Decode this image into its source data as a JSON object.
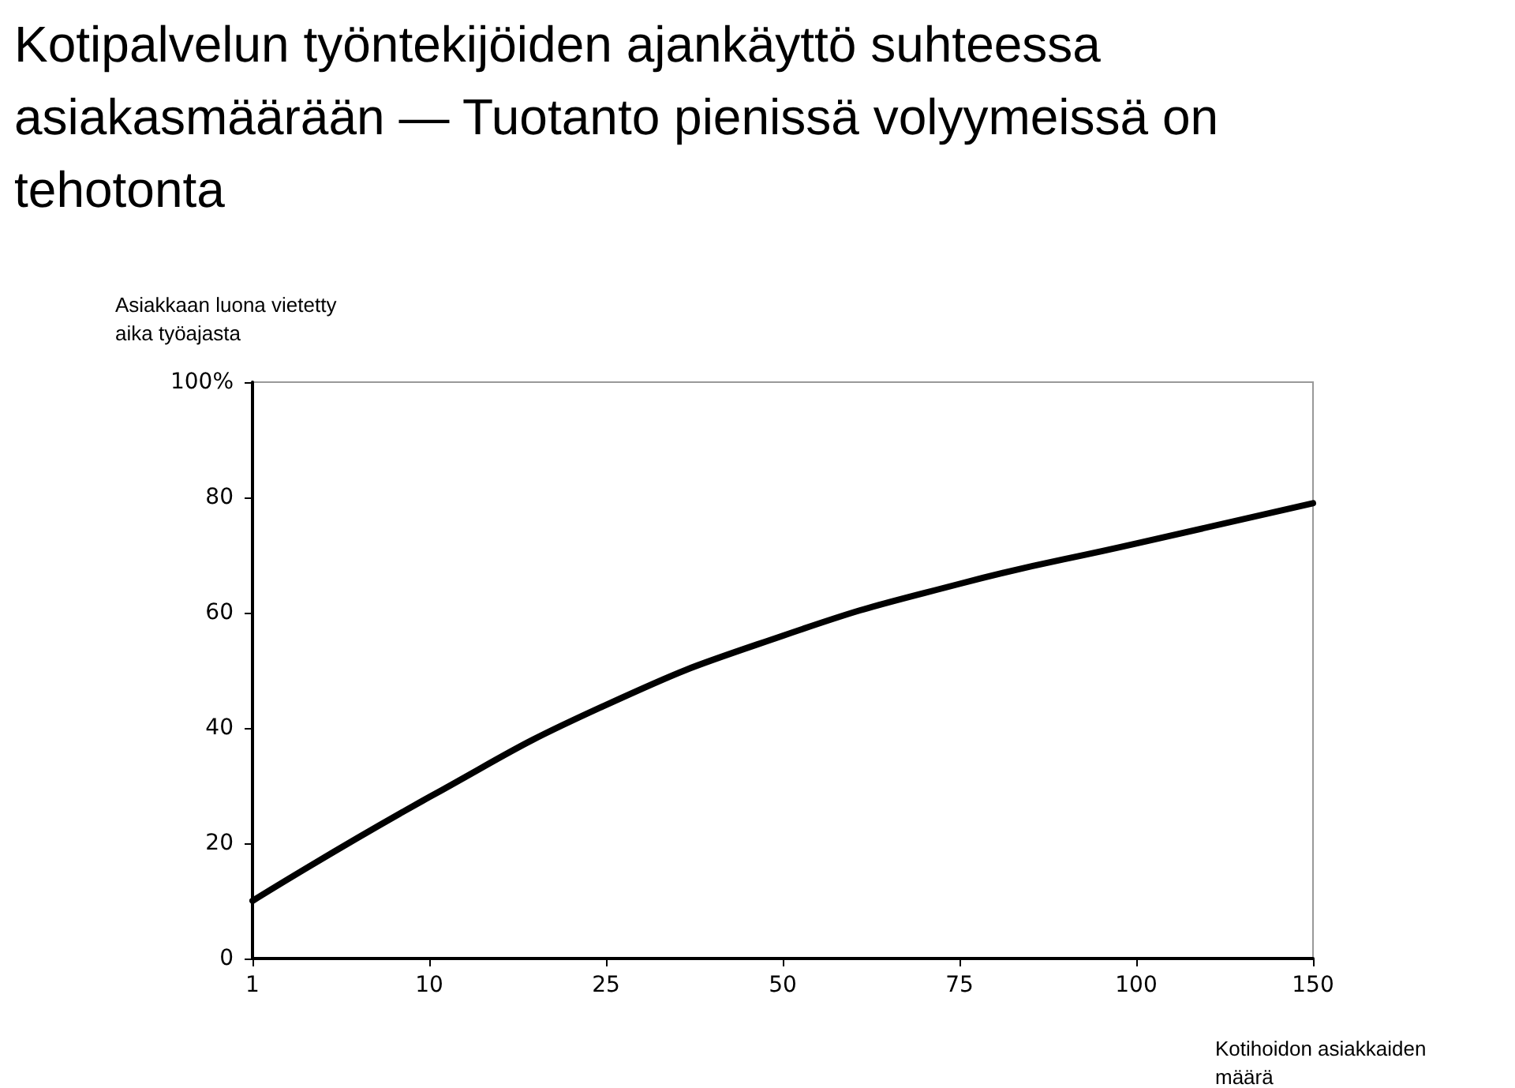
{
  "chart_data": {
    "type": "line",
    "title": "Kotipalvelun työntekijöiden ajankäyttö suhteessa asiakasmäärään — Tuotanto pienissä volyymeissä on tehotonta",
    "ylabel": "Asiakkaan luona vietetty aika työajasta",
    "xlabel": "Kotihoidon asiakkaiden määrä",
    "categories": [
      "1",
      "10",
      "25",
      "50",
      "75",
      "100",
      "150"
    ],
    "series": [
      {
        "color": "#000000",
        "values": [
          10,
          28,
          44,
          56,
          65,
          72,
          79
        ]
      }
    ],
    "ylim": [
      0,
      100
    ],
    "yticks": [
      0,
      20,
      40,
      60,
      80,
      {
        "value": 100,
        "label": "100%"
      }
    ],
    "grid": false,
    "marker": "none",
    "line_style": "solid"
  }
}
